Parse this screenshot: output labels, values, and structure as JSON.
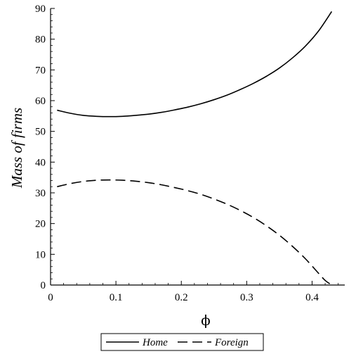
{
  "chart_data": {
    "type": "line",
    "title": "",
    "xlabel": "ϕ",
    "ylabel": "Mass of firms",
    "xlim": [
      0,
      0.45
    ],
    "ylim": [
      0,
      90
    ],
    "xticks": [
      0,
      0.1,
      0.2,
      0.3,
      0.4
    ],
    "xtick_labels": [
      "0",
      "0.1",
      "0.2",
      "0.3",
      "0.4"
    ],
    "yticks": [
      0,
      10,
      20,
      30,
      40,
      50,
      60,
      70,
      80,
      90
    ],
    "ytick_labels": [
      "0",
      "10",
      "20",
      "30",
      "40",
      "50",
      "60",
      "70",
      "80",
      "90"
    ],
    "grid": false,
    "legend_position": "bottom-center",
    "series": [
      {
        "name": "Home",
        "style": "solid",
        "color": "#000000",
        "x": [
          0.01,
          0.03,
          0.05,
          0.07,
          0.09,
          0.11,
          0.13,
          0.15,
          0.17,
          0.19,
          0.21,
          0.23,
          0.25,
          0.27,
          0.29,
          0.31,
          0.33,
          0.35,
          0.37,
          0.39,
          0.41,
          0.43
        ],
        "y": [
          56.9,
          55.9,
          55.2,
          54.9,
          54.8,
          54.9,
          55.2,
          55.6,
          56.2,
          57.0,
          57.9,
          59.0,
          60.3,
          61.8,
          63.6,
          65.6,
          67.9,
          70.6,
          73.9,
          77.8,
          82.7,
          89.0
        ]
      },
      {
        "name": "Foreign",
        "style": "dashed",
        "color": "#000000",
        "x": [
          0.01,
          0.03,
          0.05,
          0.07,
          0.09,
          0.11,
          0.13,
          0.15,
          0.17,
          0.19,
          0.21,
          0.23,
          0.25,
          0.27,
          0.29,
          0.31,
          0.33,
          0.35,
          0.37,
          0.39,
          0.41,
          0.42,
          0.43
        ],
        "y": [
          32.0,
          33.0,
          33.7,
          34.1,
          34.2,
          34.1,
          33.8,
          33.3,
          32.6,
          31.7,
          30.7,
          29.5,
          28.0,
          26.3,
          24.3,
          22.0,
          19.3,
          16.2,
          12.6,
          8.5,
          3.8,
          1.5,
          0.0
        ]
      }
    ]
  }
}
